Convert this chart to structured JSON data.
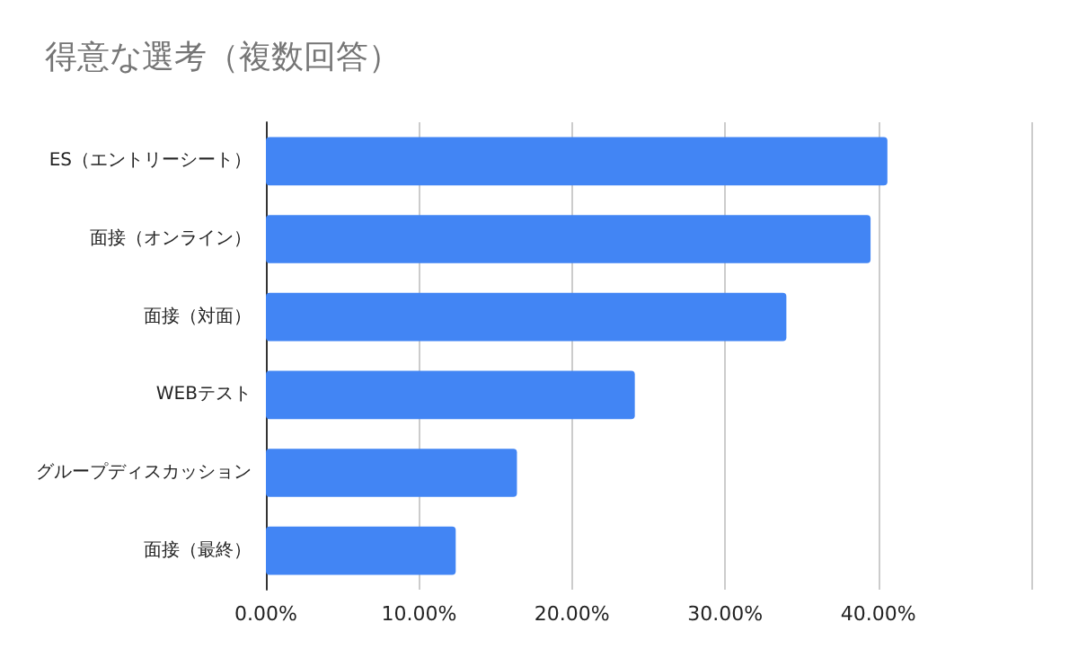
{
  "chart_data": {
    "type": "bar",
    "orientation": "horizontal",
    "title": "得意な選考（複数回答）",
    "categories": [
      "ES（エントリーシート）",
      "面接（オンライン）",
      "面接（対面）",
      "WEBテスト",
      "グループディスカッション",
      "面接（最終）"
    ],
    "values": [
      40.6,
      39.5,
      34.0,
      24.1,
      16.4,
      12.4
    ],
    "color": "#4285f4",
    "xlim": [
      0,
      50
    ],
    "xticks": [
      {
        "value": 0,
        "label": "0.00%"
      },
      {
        "value": 10,
        "label": "10.00%"
      },
      {
        "value": 20,
        "label": "20.00%"
      },
      {
        "value": 30,
        "label": "30.00%"
      },
      {
        "value": 40,
        "label": "40.00%"
      },
      {
        "value": 50,
        "label": null
      }
    ],
    "grid": "x"
  }
}
